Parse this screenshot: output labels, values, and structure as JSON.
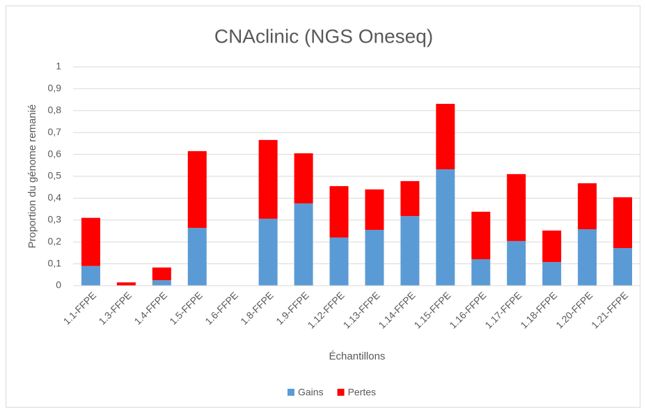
{
  "chart_data": {
    "type": "stacked_bar",
    "title": "CNAclinic (NGS Oneseq)",
    "x_label": "Échantillons",
    "y_label": "Proportion du génome remanié",
    "categories": [
      "1.1-FFPE",
      "1.3-FFPE",
      "1.4-FFPE",
      "1.5-FFPE",
      "1.6-FFPE",
      "1.8-FFPE",
      "1.9-FFPE",
      "1.12-FFPE",
      "1.13-FFPE",
      "1.14-FFPE",
      "1.15-FFPE",
      "1.16-FFPE",
      "1.17-FFPE",
      "1.18-FFPE",
      "1.20-FFPE",
      "1.21-FFPE"
    ],
    "series": [
      {
        "name": "Gains",
        "color": "#5b9bd5",
        "values": [
          0.09,
          0,
          0.025,
          0.264,
          0,
          0.306,
          0.376,
          0.22,
          0.255,
          0.318,
          0.532,
          0.121,
          0.204,
          0.108,
          0.258,
          0.172
        ]
      },
      {
        "name": "Pertes",
        "color": "#ff0000",
        "values": [
          0.22,
          0.015,
          0.058,
          0.351,
          0,
          0.36,
          0.229,
          0.235,
          0.185,
          0.16,
          0.299,
          0.217,
          0.306,
          0.144,
          0.21,
          0.232
        ]
      }
    ],
    "ylim": [
      0,
      1
    ],
    "yticks": [
      0,
      {
        "value": 0.1,
        "label": "0,1"
      },
      {
        "value": 0.2,
        "label": "0,2"
      },
      {
        "value": 0.3,
        "label": "0,3"
      },
      {
        "value": 0.4,
        "label": "0,4"
      },
      {
        "value": 0.5,
        "label": "0,5"
      },
      {
        "value": 0.6,
        "label": "0,6"
      },
      {
        "value": 0.7,
        "label": "0,7"
      },
      {
        "value": 0.8,
        "label": "0,8"
      },
      {
        "value": 0.9,
        "label": "0,9"
      },
      1
    ],
    "grid": true,
    "legend": "bottom"
  }
}
